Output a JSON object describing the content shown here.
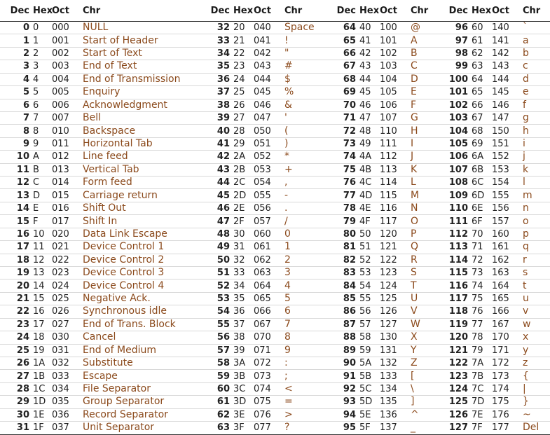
{
  "headers": [
    "Dec",
    "Hex",
    "Oct",
    "Chr"
  ],
  "rows": [
    [
      "0",
      "0",
      "000",
      "NULL",
      "32",
      "20",
      "040",
      "Space",
      "64",
      "40",
      "100",
      "@",
      "96",
      "60",
      "140",
      "`"
    ],
    [
      "1",
      "1",
      "001",
      "Start of Header",
      "33",
      "21",
      "041",
      "!",
      "65",
      "41",
      "101",
      "A",
      "97",
      "61",
      "141",
      "a"
    ],
    [
      "2",
      "2",
      "002",
      "Start of Text",
      "34",
      "22",
      "042",
      "\"",
      "66",
      "42",
      "102",
      "B",
      "98",
      "62",
      "142",
      "b"
    ],
    [
      "3",
      "3",
      "003",
      "End of Text",
      "35",
      "23",
      "043",
      "#",
      "67",
      "43",
      "103",
      "C",
      "99",
      "63",
      "143",
      "c"
    ],
    [
      "4",
      "4",
      "004",
      "End of Transmission",
      "36",
      "24",
      "044",
      "$",
      "68",
      "44",
      "104",
      "D",
      "100",
      "64",
      "144",
      "d"
    ],
    [
      "5",
      "5",
      "005",
      "Enquiry",
      "37",
      "25",
      "045",
      "%",
      "69",
      "45",
      "105",
      "E",
      "101",
      "65",
      "145",
      "e"
    ],
    [
      "6",
      "6",
      "006",
      "Acknowledgment",
      "38",
      "26",
      "046",
      "&",
      "70",
      "46",
      "106",
      "F",
      "102",
      "66",
      "146",
      "f"
    ],
    [
      "7",
      "7",
      "007",
      "Bell",
      "39",
      "27",
      "047",
      "'",
      "71",
      "47",
      "107",
      "G",
      "103",
      "67",
      "147",
      "g"
    ],
    [
      "8",
      "8",
      "010",
      "Backspace",
      "40",
      "28",
      "050",
      "(",
      "72",
      "48",
      "110",
      "H",
      "104",
      "68",
      "150",
      "h"
    ],
    [
      "9",
      "9",
      "011",
      "Horizontal Tab",
      "41",
      "29",
      "051",
      ")",
      "73",
      "49",
      "111",
      "I",
      "105",
      "69",
      "151",
      "i"
    ],
    [
      "10",
      "A",
      "012",
      "Line feed",
      "42",
      "2A",
      "052",
      "*",
      "74",
      "4A",
      "112",
      "J",
      "106",
      "6A",
      "152",
      "j"
    ],
    [
      "11",
      "B",
      "013",
      "Vertical Tab",
      "43",
      "2B",
      "053",
      "+",
      "75",
      "4B",
      "113",
      "K",
      "107",
      "6B",
      "153",
      "k"
    ],
    [
      "12",
      "C",
      "014",
      "Form feed",
      "44",
      "2C",
      "054",
      ",",
      "76",
      "4C",
      "114",
      "L",
      "108",
      "6C",
      "154",
      "l"
    ],
    [
      "13",
      "D",
      "015",
      "Carriage return",
      "45",
      "2D",
      "055",
      "-",
      "77",
      "4D",
      "115",
      "M",
      "109",
      "6D",
      "155",
      "m"
    ],
    [
      "14",
      "E",
      "016",
      "Shift Out",
      "46",
      "2E",
      "056",
      ".",
      "78",
      "4E",
      "116",
      "N",
      "110",
      "6E",
      "156",
      "n"
    ],
    [
      "15",
      "F",
      "017",
      "Shift In",
      "47",
      "2F",
      "057",
      "/",
      "79",
      "4F",
      "117",
      "O",
      "111",
      "6F",
      "157",
      "o"
    ],
    [
      "16",
      "10",
      "020",
      "Data Link Escape",
      "48",
      "30",
      "060",
      "0",
      "80",
      "50",
      "120",
      "P",
      "112",
      "70",
      "160",
      "p"
    ],
    [
      "17",
      "11",
      "021",
      "Device Control 1",
      "49",
      "31",
      "061",
      "1",
      "81",
      "51",
      "121",
      "Q",
      "113",
      "71",
      "161",
      "q"
    ],
    [
      "18",
      "12",
      "022",
      "Device Control 2",
      "50",
      "32",
      "062",
      "2",
      "82",
      "52",
      "122",
      "R",
      "114",
      "72",
      "162",
      "r"
    ],
    [
      "19",
      "13",
      "023",
      "Device Control 3",
      "51",
      "33",
      "063",
      "3",
      "83",
      "53",
      "123",
      "S",
      "115",
      "73",
      "163",
      "s"
    ],
    [
      "20",
      "14",
      "024",
      "Device Control 4",
      "52",
      "34",
      "064",
      "4",
      "84",
      "54",
      "124",
      "T",
      "116",
      "74",
      "164",
      "t"
    ],
    [
      "21",
      "15",
      "025",
      "Negative Ack.",
      "53",
      "35",
      "065",
      "5",
      "85",
      "55",
      "125",
      "U",
      "117",
      "75",
      "165",
      "u"
    ],
    [
      "22",
      "16",
      "026",
      "Synchronous idle",
      "54",
      "36",
      "066",
      "6",
      "86",
      "56",
      "126",
      "V",
      "118",
      "76",
      "166",
      "v"
    ],
    [
      "23",
      "17",
      "027",
      "End of Trans. Block",
      "55",
      "37",
      "067",
      "7",
      "87",
      "57",
      "127",
      "W",
      "119",
      "77",
      "167",
      "w"
    ],
    [
      "24",
      "18",
      "030",
      "Cancel",
      "56",
      "38",
      "070",
      "8",
      "88",
      "58",
      "130",
      "X",
      "120",
      "78",
      "170",
      "x"
    ],
    [
      "25",
      "19",
      "031",
      "End of Medium",
      "57",
      "39",
      "071",
      "9",
      "89",
      "59",
      "131",
      "Y",
      "121",
      "79",
      "171",
      "y"
    ],
    [
      "26",
      "1A",
      "032",
      "Substitute",
      "58",
      "3A",
      "072",
      ":",
      "90",
      "5A",
      "132",
      "Z",
      "122",
      "7A",
      "172",
      "z"
    ],
    [
      "27",
      "1B",
      "033",
      "Escape",
      "59",
      "3B",
      "073",
      ";",
      "91",
      "5B",
      "133",
      "[",
      "123",
      "7B",
      "173",
      "{"
    ],
    [
      "28",
      "1C",
      "034",
      "File Separator",
      "60",
      "3C",
      "074",
      "<",
      "92",
      "5C",
      "134",
      "\\",
      "124",
      "7C",
      "174",
      "|"
    ],
    [
      "29",
      "1D",
      "035",
      "Group Separator",
      "61",
      "3D",
      "075",
      "=",
      "93",
      "5D",
      "135",
      "]",
      "125",
      "7D",
      "175",
      "}"
    ],
    [
      "30",
      "1E",
      "036",
      "Record Separator",
      "62",
      "3E",
      "076",
      ">",
      "94",
      "5E",
      "136",
      "^",
      "126",
      "7E",
      "176",
      "~"
    ],
    [
      "31",
      "1F",
      "037",
      "Unit Separator",
      "63",
      "3F",
      "077",
      "?",
      "95",
      "5F",
      "137",
      "_",
      "127",
      "7F",
      "177",
      "Del"
    ]
  ]
}
